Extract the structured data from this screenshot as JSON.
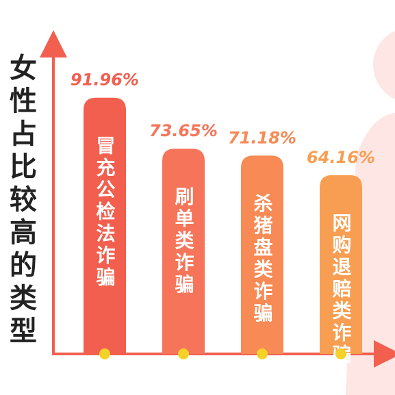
{
  "chart_data": {
    "type": "bar",
    "y_axis_label": "女性占比较高的类型",
    "categories": [
      "冒充公检法诈骗",
      "刷单类诈骗",
      "杀猪盘类诈骗",
      "网购退赔类诈骗"
    ],
    "values": [
      91.96,
      73.65,
      71.18,
      64.16
    ],
    "value_labels": [
      "91.96%",
      "73.65%",
      "71.18%",
      "64.16%"
    ],
    "colors": [
      "#f25f4f",
      "#f6755a",
      "#f78a55",
      "#f89e52"
    ]
  }
}
